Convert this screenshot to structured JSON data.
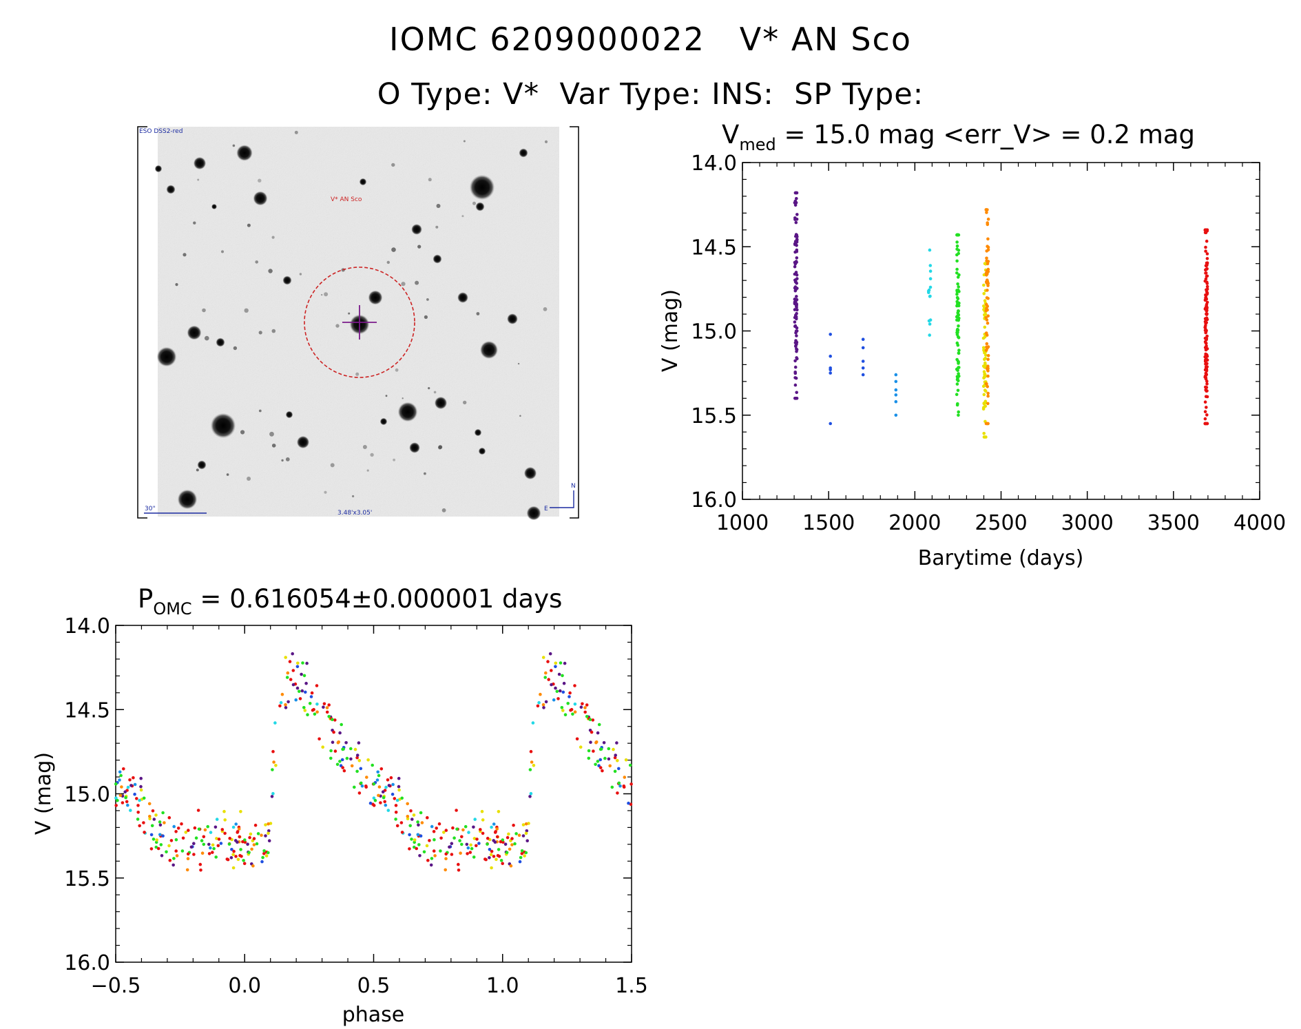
{
  "header": {
    "line1": "IOMC 6209000022   V* AN Sco",
    "line2": "O Type: V*  Var Type: INS:  SP Type:"
  },
  "finder": {
    "survey_label": "ESO DSS2-red",
    "target_label": "V* AN Sco",
    "scale_label": "30\"",
    "fov_label": "3.48'x3.05'",
    "north_label": "N",
    "east_label": "E"
  },
  "colors": {
    "purple": "#5a1686",
    "blue": "#1f4fe0",
    "lightblue": "#1a90e8",
    "cyan": "#22d8e6",
    "green": "#22e022",
    "yellow": "#e8e000",
    "orange": "#ff8a00",
    "red": "#e81010",
    "darkred": "#b01010",
    "finder_red": "#cc2222",
    "finder_purple": "#7a1a8a",
    "finder_blue": "#1a2aa0"
  },
  "chart_data": [
    {
      "type": "scatter",
      "title_main": "V",
      "title_sub": "med",
      "title_rest": " = 15.0 mag <err_V> = 0.2 mag",
      "xlabel": "Barytime (days)",
      "ylabel": "V (mag)",
      "xlim": [
        1000,
        4000
      ],
      "ylim": [
        16.0,
        14.0
      ],
      "y_inverted": true,
      "xticks": [
        "1000",
        "1500",
        "2000",
        "2500",
        "3000",
        "3500",
        "4000"
      ],
      "yticks": [
        "14.0",
        "14.5",
        "15.0",
        "15.5",
        "16.0"
      ],
      "series": [
        {
          "color": "purple",
          "x": 1310,
          "y_min": 14.18,
          "y_max": 15.4,
          "n": 110
        },
        {
          "color": "blue",
          "x": 1510,
          "y_points": [
            15.02,
            15.15,
            15.22,
            15.23,
            15.25,
            15.55
          ]
        },
        {
          "color": "blue",
          "x": 1700,
          "y_points": [
            15.05,
            15.1,
            15.18,
            15.22,
            15.26
          ]
        },
        {
          "color": "lightblue",
          "x": 1890,
          "y_points": [
            15.26,
            15.3,
            15.35,
            15.38,
            15.42,
            15.5
          ]
        },
        {
          "color": "cyan",
          "x": 2085,
          "y_min": 14.52,
          "y_max": 15.03,
          "n": 14
        },
        {
          "color": "green",
          "x": 2250,
          "y_min": 14.43,
          "y_max": 15.5,
          "n": 80
        },
        {
          "color": "yellow",
          "x": 2405,
          "y_min": 14.6,
          "y_max": 15.63,
          "n": 70
        },
        {
          "color": "orange",
          "x": 2420,
          "y_min": 14.28,
          "y_max": 15.55,
          "n": 70
        },
        {
          "color": "red",
          "x": 3690,
          "y_min": 14.4,
          "y_max": 15.55,
          "n": 150
        }
      ]
    },
    {
      "type": "scatter",
      "title_main": "P",
      "title_sub": "OMC",
      "title_rest": " = 0.616054±0.000001 days",
      "xlabel": "phase",
      "ylabel": "V (mag)",
      "xlim": [
        -0.5,
        1.5
      ],
      "ylim": [
        16.0,
        14.0
      ],
      "y_inverted": true,
      "xticks": [
        "−0.5",
        "0.0",
        "0.5",
        "1.0",
        "1.5"
      ],
      "yticks": [
        "14.0",
        "14.5",
        "15.0",
        "15.5",
        "16.0"
      ],
      "light_curve": {
        "period_days": 0.616054,
        "points": [
          {
            "phase": 0.0,
            "mag": 15.28
          },
          {
            "phase": 0.07,
            "mag": 15.32
          },
          {
            "phase": 0.09,
            "mag": 15.28
          },
          {
            "phase": 0.11,
            "mag": 14.85
          },
          {
            "phase": 0.14,
            "mag": 14.4
          },
          {
            "phase": 0.18,
            "mag": 14.32
          },
          {
            "phase": 0.22,
            "mag": 14.32
          },
          {
            "phase": 0.3,
            "mag": 14.55
          },
          {
            "phase": 0.4,
            "mag": 14.8
          },
          {
            "phase": 0.5,
            "mag": 14.95
          },
          {
            "phase": 0.58,
            "mag": 15.05
          },
          {
            "phase": 0.65,
            "mag": 15.18
          },
          {
            "phase": 0.72,
            "mag": 15.28
          },
          {
            "phase": 0.85,
            "mag": 15.28
          },
          {
            "phase": 1.0,
            "mag": 15.28
          }
        ]
      }
    }
  ]
}
